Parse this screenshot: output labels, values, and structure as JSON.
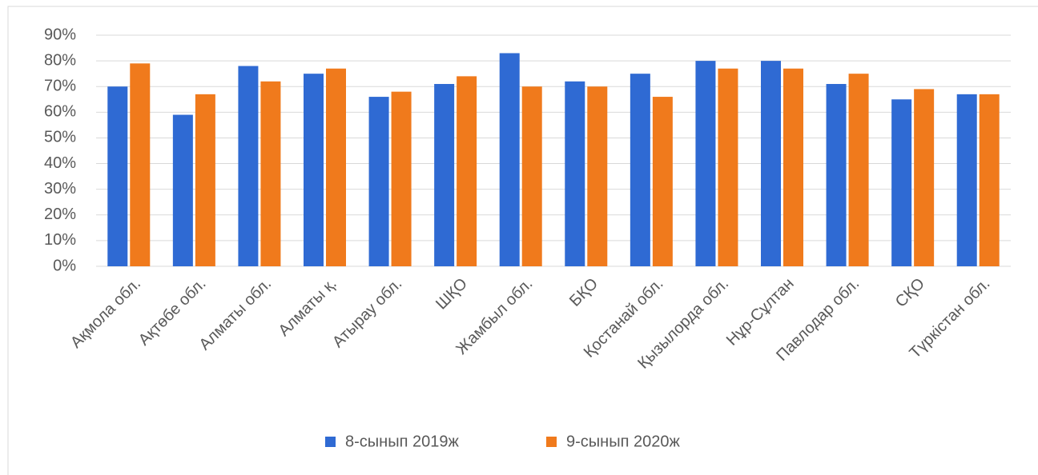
{
  "chart_data": {
    "type": "bar",
    "categories": [
      "Ақмола обл.",
      "Ақтөбе обл.",
      "Алматы обл.",
      "Алматы қ.",
      "Атырау обл.",
      "ШҚО",
      "Жамбыл обл.",
      "БҚО",
      "Қостанай обл.",
      "Қызылорда обл.",
      "Нұр-Сұлтан",
      "Павлодар обл.",
      "СҚО",
      "Түркістан обл."
    ],
    "series": [
      {
        "name": "8-сынып 2019ж",
        "color": "#2f6ad3",
        "values": [
          70,
          59,
          78,
          75,
          66,
          71,
          83,
          72,
          75,
          80,
          80,
          71,
          65,
          67
        ]
      },
      {
        "name": "9-сынып 2020ж",
        "color": "#f07a1c",
        "values": [
          79,
          67,
          72,
          77,
          68,
          74,
          70,
          70,
          66,
          77,
          77,
          75,
          69,
          67
        ]
      }
    ],
    "ylim": [
      0,
      90
    ],
    "yticks": [
      {
        "value": 0,
        "label": "0%"
      },
      {
        "value": 10,
        "label": "10%"
      },
      {
        "value": 20,
        "label": "20%"
      },
      {
        "value": 30,
        "label": "30%"
      },
      {
        "value": 40,
        "label": "40%"
      },
      {
        "value": 50,
        "label": "50%"
      },
      {
        "value": 60,
        "label": "60%"
      },
      {
        "value": 70,
        "label": "70%"
      },
      {
        "value": 80,
        "label": "80%"
      },
      {
        "value": 90,
        "label": "90%"
      }
    ],
    "grid": true,
    "legend": "bottom"
  }
}
